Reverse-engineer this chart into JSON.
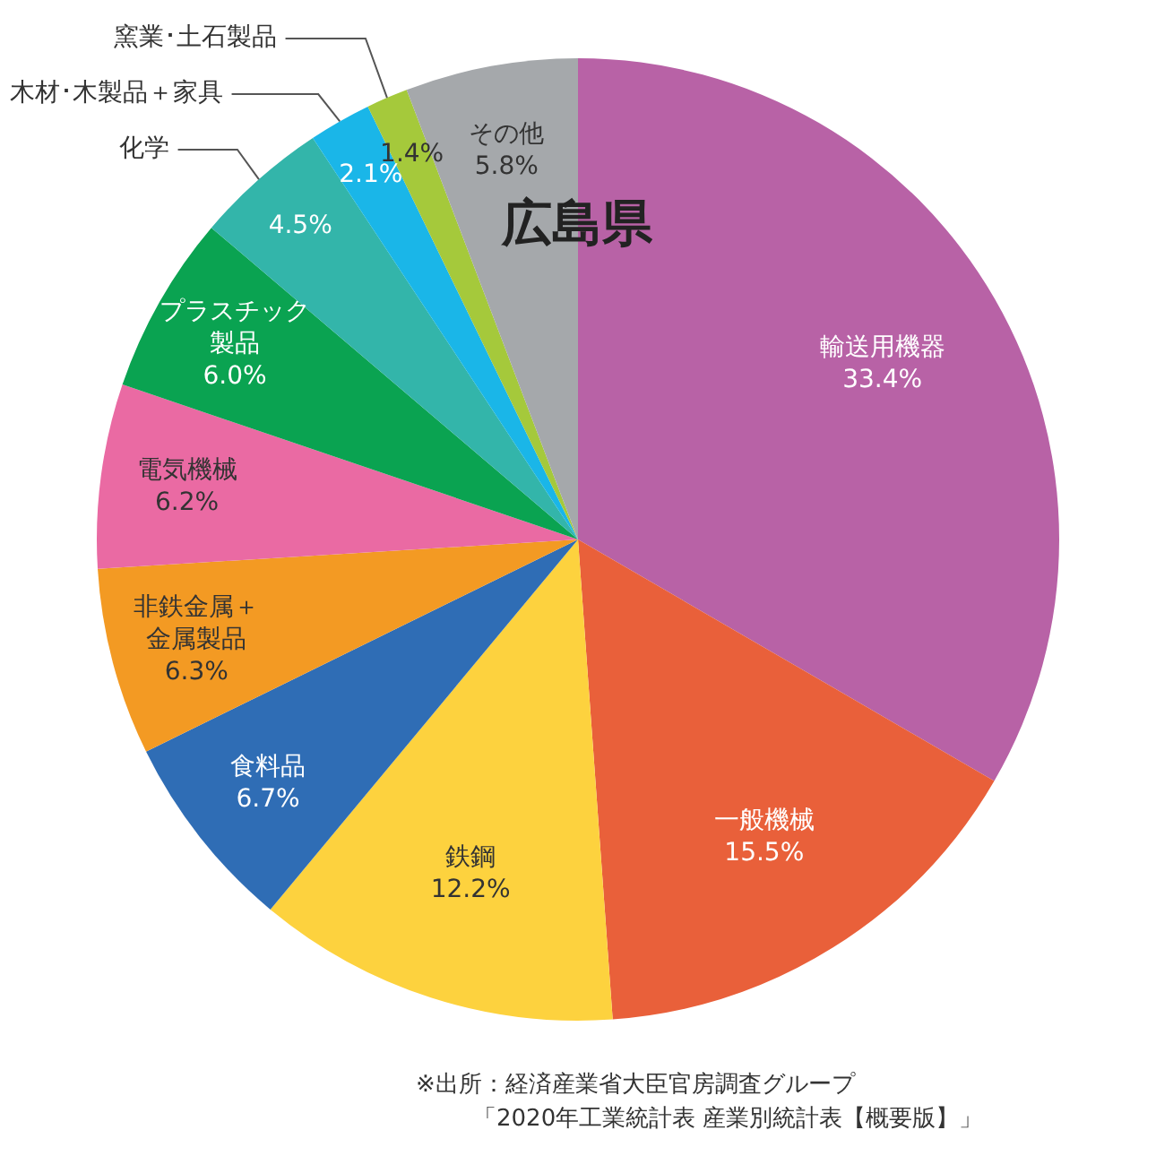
{
  "chart_data": {
    "type": "pie",
    "title": "広島県",
    "categories": [
      "輸送用機器",
      "一般機械",
      "鉄鋼",
      "食料品",
      "非鉄金属＋金属製品",
      "電気機械",
      "プラスチック製品",
      "化学",
      "木材･木製品＋家具",
      "窯業･土石製品",
      "その他"
    ],
    "values": [
      33.4,
      15.5,
      12.2,
      6.7,
      6.3,
      6.2,
      6.0,
      4.5,
      2.1,
      1.4,
      5.8
    ],
    "value_labels": [
      "33.4%",
      "15.5%",
      "12.2%",
      "6.7%",
      "6.3%",
      "6.2%",
      "6.0%",
      "4.5%",
      "2.1%",
      "1.4%",
      "5.8%"
    ],
    "colors": [
      "#b862a6",
      "#e9603a",
      "#fdd23e",
      "#2f6db5",
      "#f39a23",
      "#ea6aa3",
      "#0aa351",
      "#33b5aa",
      "#1ab6e8",
      "#a5c93b",
      "#a5a8ab"
    ],
    "legend": false,
    "annotations": [
      "※出所：経済産業省大臣官房調査グループ",
      "「2020年工業統計表 産業別統計表【概要版】」"
    ]
  }
}
